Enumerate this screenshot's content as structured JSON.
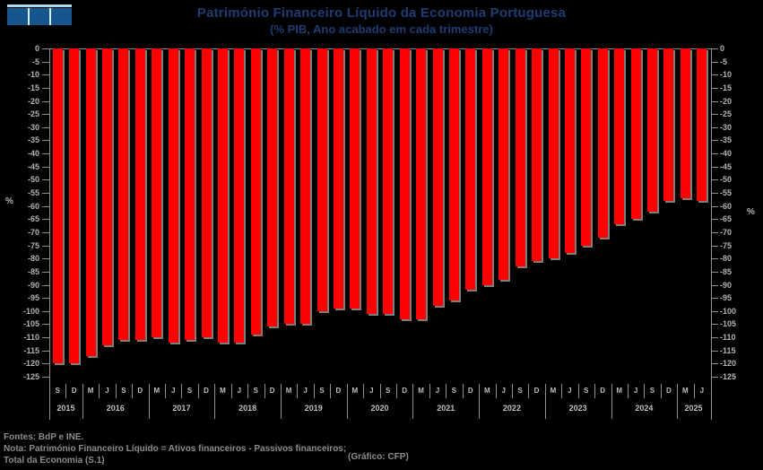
{
  "logo": {
    "name": "cfp-logo",
    "square_color": "#15568f",
    "top_bar_color": "#a9dcec"
  },
  "chart_data": {
    "type": "bar",
    "title": "Património Financeiro Líquido da Economia Portuguesa",
    "subtitle": "(% PIB, Ano acabado em cada trimestre)",
    "ylabel": "%",
    "ylim": [
      -125,
      0
    ],
    "ytick_step": 5,
    "grid": false,
    "legend": false,
    "bar_color": "#fe0000",
    "background_color": "#000000",
    "ytick_labels": [
      "0",
      "-5",
      "-10",
      "-15",
      "-20",
      "-25",
      "-30",
      "-35",
      "-40",
      "-45",
      "-50",
      "-55",
      "-60",
      "-65",
      "-70",
      "-75",
      "-80",
      "-85",
      "-90",
      "-95",
      "-100",
      "-105",
      "-110",
      "-115",
      "-120",
      "-125"
    ],
    "categories": [
      "S",
      "D",
      "M",
      "J",
      "S",
      "D",
      "M",
      "J",
      "S",
      "D",
      "M",
      "J",
      "S",
      "D",
      "M",
      "J",
      "S",
      "D",
      "M",
      "J",
      "S",
      "D",
      "M",
      "J",
      "S",
      "D",
      "M",
      "J",
      "S",
      "D",
      "M",
      "J",
      "S",
      "D",
      "M",
      "J",
      "S",
      "D",
      "M",
      "J"
    ],
    "year_groups": [
      {
        "label": "2015",
        "count": 2
      },
      {
        "label": "2016",
        "count": 4
      },
      {
        "label": "2017",
        "count": 4
      },
      {
        "label": "2018",
        "count": 4
      },
      {
        "label": "2019",
        "count": 4
      },
      {
        "label": "2020",
        "count": 4
      },
      {
        "label": "2021",
        "count": 4
      },
      {
        "label": "2022",
        "count": 4
      },
      {
        "label": "2023",
        "count": 4
      },
      {
        "label": "2024",
        "count": 4
      },
      {
        "label": "2025",
        "count": 2
      }
    ],
    "values": [
      -120,
      -120,
      -117,
      -113,
      -111,
      -111,
      -110,
      -112,
      -111,
      -110,
      -112,
      -112,
      -109,
      -106,
      -105,
      -105,
      -100,
      -99,
      -99,
      -101,
      -101,
      -103,
      -103,
      -98,
      -96,
      -92,
      -90,
      -88,
      -83,
      -81,
      -80,
      -78,
      -75,
      -72,
      -67,
      -65,
      -62,
      -58,
      -57,
      -58
    ]
  },
  "footer": {
    "line1": "Fontes: BdP e INE.",
    "line2": "Nota: Património Financeiro Líquido = Ativos financeiros - Passivos financeiros;",
    "line3": "Total da Economia (S.1)",
    "credit": "(Gráfico: CFP)"
  }
}
